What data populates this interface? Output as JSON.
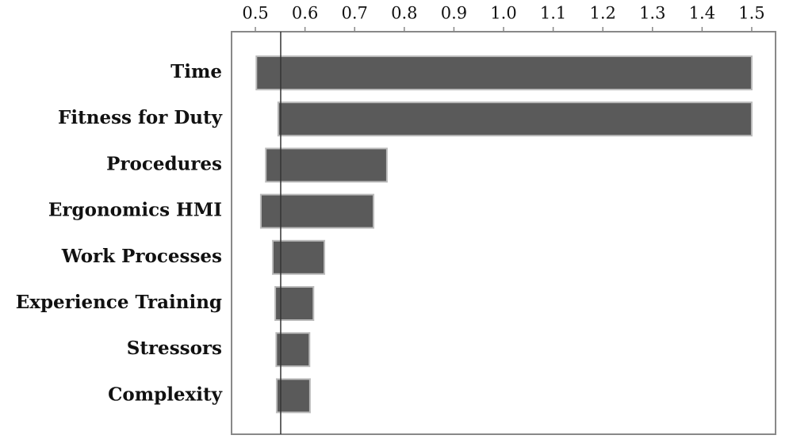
{
  "chart_data": {
    "type": "floating-bar",
    "categories": [
      "Time",
      "Fitness for Duty",
      "Procedures",
      "Ergonomics HMI",
      "Work Processes",
      "Experience Training",
      "Stressors",
      "Complexity"
    ],
    "ranges": [
      [
        0.502,
        1.5
      ],
      [
        0.546,
        1.5
      ],
      [
        0.521,
        0.765
      ],
      [
        0.511,
        0.738
      ],
      [
        0.535,
        0.639
      ],
      [
        0.54,
        0.617
      ],
      [
        0.542,
        0.609
      ],
      [
        0.543,
        0.61
      ]
    ],
    "color": "#5a5a5a",
    "reference": 0.551,
    "xlim": [
      0.452,
      1.548
    ],
    "xticks": [
      0.5,
      0.6,
      0.7,
      0.8,
      0.9,
      {
        "value": 1,
        "label": "1.0"
      },
      1.1,
      1.2,
      1.3,
      1.4,
      1.5
    ]
  }
}
